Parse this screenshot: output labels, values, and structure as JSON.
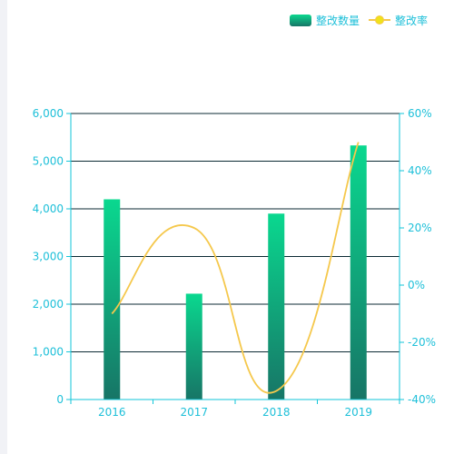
{
  "chart_data": {
    "type": "bar",
    "categories": [
      "2016",
      "2017",
      "2018",
      "2019"
    ],
    "series": [
      {
        "name": "整改数量",
        "type": "bar",
        "axis": "left",
        "values": [
          4200,
          2220,
          3900,
          5330
        ]
      },
      {
        "name": "整改率",
        "type": "line",
        "axis": "right",
        "smooth": true,
        "values": [
          -10,
          20,
          -37,
          50
        ]
      }
    ],
    "left_axis": {
      "ylim": [
        0,
        6000
      ],
      "ticks": [
        0,
        1000,
        2000,
        3000,
        4000,
        5000,
        6000
      ],
      "tick_labels": [
        "0",
        "1,000",
        "2,000",
        "3,000",
        "4,000",
        "5,000",
        "6,000"
      ]
    },
    "right_axis": {
      "ylim": [
        -40,
        60
      ],
      "ticks": [
        -40,
        -20,
        0,
        20,
        40,
        60
      ],
      "tick_labels": [
        "-40%",
        "-20%",
        "0%",
        "20%",
        "40%",
        "60%"
      ]
    },
    "grid": true,
    "legend_position": "top-right",
    "colors": {
      "axis": "#12c6d9",
      "grid": "#0b2a33",
      "label_text": "#1fc0d9",
      "bar_top": "#0ad88f",
      "bar_bottom": "#177566",
      "line": "#f5c84c",
      "legend_marker_fill": "#f0e21a"
    }
  }
}
